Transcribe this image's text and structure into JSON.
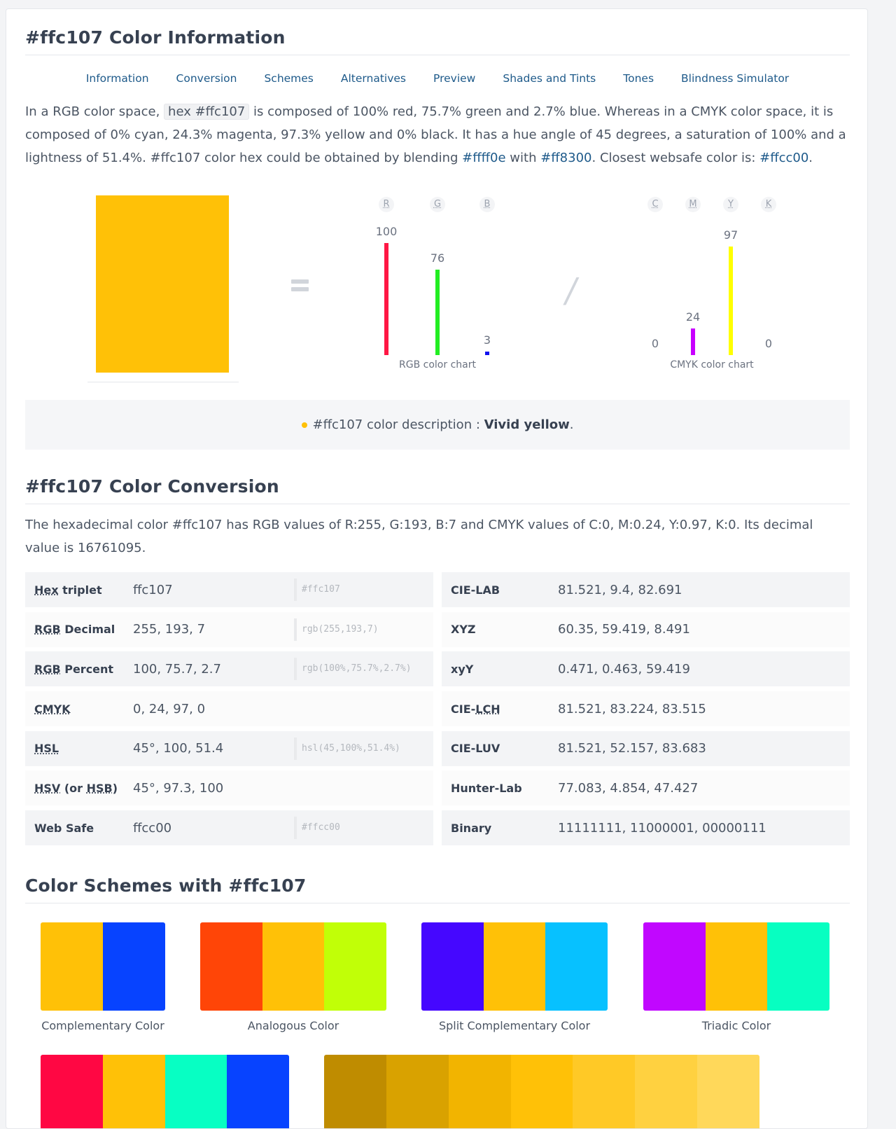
{
  "header": {
    "title": "#ffc107 Color Information"
  },
  "nav": [
    "Information",
    "Conversion",
    "Schemes",
    "Alternatives",
    "Preview",
    "Shades and Tints",
    "Tones",
    "Blindness Simulator"
  ],
  "info": {
    "p1": "In a RGB color space,",
    "hex_code": "hex #ffc107",
    "p2": " is composed of 100% red, 75.7% green and 2.7% blue. Whereas in a CMYK color space, it is composed of 0% cyan, 24.3% magenta, 97.3% yellow and 0% black. It has a hue angle of 45 degrees, a saturation of 100% and a lightness of 51.4%. #ffc107 color hex could be obtained by blending ",
    "blend1": "#ffff0e",
    "p3": " with ",
    "blend2": "#ff8300",
    "p4": ". Closest websafe color is: ",
    "websafe": "#ffcc00",
    "p5": "."
  },
  "swatch_color": "#ffc107",
  "rgb_chart": {
    "label": "RGB color chart",
    "channels": [
      {
        "letter": "R",
        "value": 100,
        "display": "100",
        "color": "#ff1744"
      },
      {
        "letter": "G",
        "value": 76,
        "display": "76",
        "color": "#22ee22"
      },
      {
        "letter": "B",
        "value": 3,
        "display": "3",
        "color": "#1111ee"
      }
    ]
  },
  "cmyk_chart": {
    "label": "CMYK color chart",
    "channels": [
      {
        "letter": "C",
        "value": 0,
        "display": "0",
        "color": "#00ffff"
      },
      {
        "letter": "M",
        "value": 24,
        "display": "24",
        "color": "#c800ff"
      },
      {
        "letter": "Y",
        "value": 97,
        "display": "97",
        "color": "#ffff00"
      },
      {
        "letter": "K",
        "value": 0,
        "display": "0",
        "color": "#000000"
      }
    ]
  },
  "description": {
    "prefix": "#ffc107 color description",
    "sep": " : ",
    "value": "Vivid yellow",
    "suffix": "."
  },
  "conversion": {
    "title": "#ffc107 Color Conversion",
    "text": "The hexadecimal color #ffc107 has RGB values of R:255, G:193, B:7 and CMYK values of C:0, M:0.24, Y:0.97, K:0. Its decimal value is 16761095.",
    "left": [
      {
        "key": "Hex",
        "key2": " triplet",
        "value": "ffc107",
        "code": "#ffc107"
      },
      {
        "key": "RGB",
        "key2": " Decimal",
        "value": "255, 193, 7",
        "code": "rgb(255,193,7)"
      },
      {
        "key": "RGB",
        "key2": " Percent",
        "value": "100, 75.7, 2.7",
        "code": "rgb(100%,75.7%,2.7%)"
      },
      {
        "key": "CMYK",
        "key2": "",
        "value": "0, 24, 97, 0",
        "code": ""
      },
      {
        "key": "HSL",
        "key2": "",
        "value": "45°, 100, 51.4",
        "code": "hsl(45,100%,51.4%)"
      },
      {
        "key": "HSV",
        "key2": " (or HSB)",
        "value": "45°, 97.3, 100",
        "code": ""
      },
      {
        "key": "Web Safe",
        "key2": "",
        "value": "ffcc00",
        "code": "#ffcc00"
      }
    ],
    "right": [
      {
        "key": "CIE-LAB",
        "value": "81.521, 9.4, 82.691"
      },
      {
        "key": "XYZ",
        "value": "60.35, 59.419, 8.491"
      },
      {
        "key": "xyY",
        "value": "0.471, 0.463, 59.419"
      },
      {
        "key": "CIE-LCH",
        "value": "81.521, 83.224, 83.515"
      },
      {
        "key": "CIE-LUV",
        "value": "81.521, 52.157, 83.683"
      },
      {
        "key": "Hunter-Lab",
        "value": "77.083, 4.854, 47.427"
      },
      {
        "key": "Binary",
        "value": "11111111, 11000001, 00000111"
      }
    ]
  },
  "schemes": {
    "title": "Color Schemes with #ffc107",
    "items": [
      {
        "label": "Complementary Color",
        "colors": [
          "#ffc107",
          "#0743ff"
        ]
      },
      {
        "label": "Analogous Color",
        "colors": [
          "#ff4507",
          "#ffc107",
          "#c1ff07"
        ]
      },
      {
        "label": "Split Complementary Color",
        "colors": [
          "#4507ff",
          "#ffc107",
          "#07c1ff"
        ]
      },
      {
        "label": "Triadic Color",
        "colors": [
          "#c107ff",
          "#ffc107",
          "#07ffc1"
        ]
      }
    ],
    "row2": [
      {
        "colors": [
          "#ff0743",
          "#ffc107",
          "#07ffc3",
          "#0743ff"
        ]
      },
      {
        "colors": [
          "#bf8c00",
          "#d9a200",
          "#f2b400",
          "#ffc107",
          "#ffc926",
          "#ffd140",
          "#ffd85a"
        ]
      }
    ]
  }
}
